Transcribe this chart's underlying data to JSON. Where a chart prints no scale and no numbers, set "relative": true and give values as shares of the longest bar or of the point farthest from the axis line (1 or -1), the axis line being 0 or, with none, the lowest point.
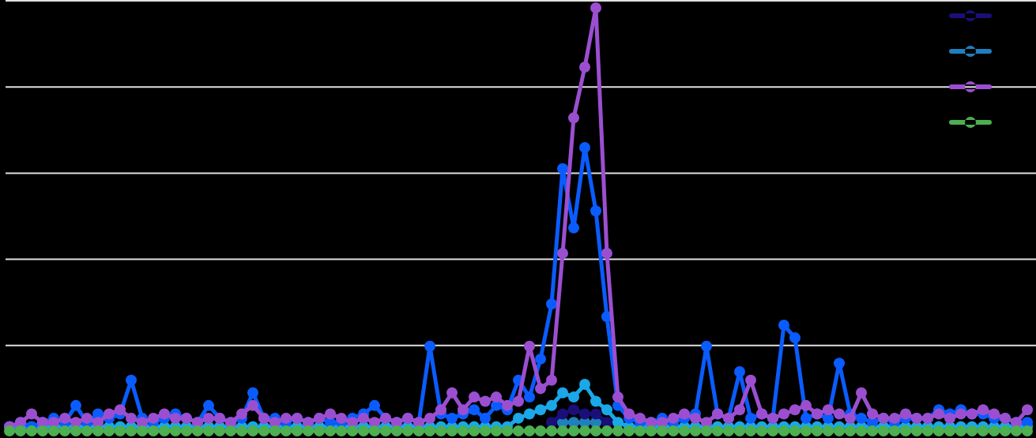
{
  "chart_data": {
    "type": "line",
    "relative": true,
    "grid": "y",
    "marker": "circle",
    "line_style": "solid",
    "categories": [
      null,
      null,
      null,
      null,
      null,
      null,
      null,
      null,
      null,
      null,
      null,
      null,
      null,
      null,
      null,
      null,
      null,
      null,
      null,
      null,
      null,
      null,
      null,
      null,
      null,
      null,
      null,
      null,
      null,
      null,
      null,
      null,
      null,
      null,
      null,
      null,
      null,
      null,
      null,
      null,
      null,
      null,
      null,
      null,
      null,
      null,
      null,
      null,
      null,
      null,
      null,
      null,
      null,
      null,
      null,
      null,
      null,
      null,
      null,
      null,
      null,
      null,
      null,
      null,
      null,
      null,
      null,
      null,
      null,
      null,
      null,
      null,
      null,
      null,
      null,
      null,
      null,
      null,
      null,
      null,
      null,
      null,
      null,
      null,
      null,
      null,
      null,
      null,
      null,
      null,
      null,
      null,
      null
    ],
    "series": [
      {
        "color": "#1f7fbf",
        "values": [
          null,
          null,
          null,
          null,
          null,
          null,
          null,
          null,
          null,
          null,
          null,
          null,
          null,
          null,
          null,
          null,
          null,
          null,
          null,
          null,
          null,
          null,
          null,
          null,
          null,
          null,
          null,
          null,
          null,
          null,
          null,
          null,
          null,
          null,
          null,
          null,
          null,
          null,
          null,
          null,
          null,
          null,
          null,
          null,
          null,
          null,
          null,
          null,
          null,
          null,
          0.02,
          0.02,
          0.02,
          0.02,
          null,
          null,
          null,
          null,
          null,
          null,
          null,
          null,
          null,
          null,
          null,
          null,
          null,
          null,
          null,
          null,
          null,
          null,
          null,
          null,
          null,
          null,
          null,
          null,
          null,
          null,
          null,
          null,
          null,
          null,
          null,
          null,
          null,
          null,
          null,
          null,
          null,
          null,
          null
        ]
      },
      {
        "color": "#1a0f78",
        "values": [
          null,
          null,
          null,
          null,
          null,
          null,
          null,
          null,
          null,
          null,
          null,
          null,
          null,
          null,
          null,
          null,
          null,
          null,
          null,
          null,
          null,
          null,
          null,
          null,
          null,
          null,
          null,
          null,
          null,
          null,
          null,
          null,
          null,
          null,
          null,
          null,
          null,
          null,
          null,
          null,
          null,
          null,
          null,
          null,
          null,
          null,
          null,
          null,
          null,
          0.02,
          0.04,
          0.05,
          0.04,
          0.04,
          0.02,
          null,
          null,
          null,
          null,
          null,
          null,
          null,
          null,
          null,
          null,
          null,
          null,
          null,
          null,
          null,
          null,
          null,
          null,
          null,
          null,
          null,
          null,
          null,
          null,
          null,
          null,
          null,
          null,
          null,
          null,
          null,
          null,
          null,
          null,
          null,
          null,
          null,
          null
        ]
      },
      {
        "color": "#1aa8e8",
        "values": [
          0.01,
          0.01,
          0.01,
          0.01,
          0.01,
          0.01,
          0.01,
          0.01,
          0.01,
          0.01,
          0.01,
          0.01,
          0.01,
          0.01,
          0.01,
          0.01,
          0.01,
          0.01,
          0.01,
          0.01,
          0.01,
          0.01,
          0.01,
          0.01,
          0.01,
          0.01,
          0.01,
          0.01,
          0.01,
          0.01,
          0.01,
          0.01,
          0.01,
          0.01,
          0.01,
          0.01,
          0.01,
          0.01,
          0.01,
          0.01,
          0.01,
          0.01,
          0.01,
          0.01,
          0.01,
          0.01,
          0.03,
          0.04,
          0.05,
          0.06,
          0.09,
          0.08,
          0.11,
          0.07,
          0.05,
          0.02,
          0.01,
          0.01,
          0.01,
          0.01,
          0.01,
          0.01,
          0.01,
          0.01,
          0.01,
          0.01,
          0.01,
          0.01,
          0.01,
          0.01,
          0.01,
          0.01,
          0.01,
          0.01,
          0.01,
          0.01,
          0.01,
          0.01,
          0.01,
          0.01,
          0.01,
          0.01,
          0.01,
          0.01,
          0.01,
          0.01,
          0.01,
          0.01,
          0.01,
          0.01,
          0.01,
          0.01,
          0.01
        ]
      },
      {
        "color": "#0a5cff",
        "values": [
          0.01,
          0.02,
          0.01,
          0.02,
          0.03,
          0.02,
          0.06,
          0.02,
          0.04,
          0.03,
          0.04,
          0.12,
          0.03,
          0.02,
          0.03,
          0.04,
          0.03,
          0.02,
          0.06,
          0.03,
          0.02,
          0.03,
          0.09,
          0.03,
          0.03,
          0.02,
          0.03,
          0.02,
          0.03,
          0.02,
          0.02,
          0.03,
          0.04,
          0.06,
          0.03,
          0.02,
          0.03,
          0.02,
          0.2,
          0.04,
          0.03,
          0.04,
          0.05,
          0.03,
          0.06,
          0.05,
          0.12,
          0.08,
          0.17,
          0.3,
          0.62,
          0.48,
          0.67,
          0.52,
          0.27,
          0.06,
          0.03,
          0.02,
          0.02,
          0.03,
          0.02,
          0.03,
          0.04,
          0.2,
          0.04,
          0.03,
          0.14,
          0.03,
          0.04,
          0.03,
          0.25,
          0.22,
          0.03,
          0.04,
          0.03,
          0.16,
          0.04,
          0.03,
          0.02,
          0.03,
          0.02,
          0.03,
          0.03,
          0.03,
          0.05,
          0.04,
          0.05,
          0.04,
          0.04,
          0.03,
          0.03,
          0.02,
          0.02
        ]
      },
      {
        "color": "#9b4fd0",
        "values": [
          0.01,
          0.02,
          0.04,
          0.02,
          0.02,
          0.03,
          0.02,
          0.03,
          0.02,
          0.04,
          0.05,
          0.03,
          0.02,
          0.03,
          0.04,
          0.03,
          0.03,
          0.02,
          0.03,
          0.03,
          0.02,
          0.04,
          0.06,
          0.03,
          0.02,
          0.03,
          0.03,
          0.02,
          0.03,
          0.04,
          0.03,
          0.02,
          0.03,
          0.02,
          0.03,
          0.02,
          0.03,
          0.02,
          0.03,
          0.05,
          0.09,
          0.05,
          0.08,
          0.07,
          0.08,
          0.06,
          0.07,
          0.2,
          0.1,
          0.12,
          0.42,
          0.74,
          0.86,
          1,
          0.42,
          0.08,
          0.04,
          0.03,
          0.02,
          0.02,
          0.03,
          0.04,
          0.03,
          0.02,
          0.04,
          0.03,
          0.05,
          0.12,
          0.04,
          0.03,
          0.04,
          0.05,
          0.06,
          0.04,
          0.05,
          0.04,
          0.03,
          0.09,
          0.04,
          0.03,
          0.03,
          0.04,
          0.03,
          0.03,
          0.04,
          0.03,
          0.04,
          0.04,
          0.05,
          0.04,
          0.03,
          0.02,
          0.05
        ]
      },
      {
        "color": "#4caf50",
        "values": [
          0,
          0,
          0,
          0,
          0,
          0,
          0,
          0,
          0,
          0,
          0,
          0,
          0,
          0,
          0,
          0,
          0,
          0,
          0,
          0,
          0,
          0,
          0,
          0,
          0,
          0,
          0,
          0,
          0,
          0,
          0,
          0,
          0,
          0,
          0,
          0,
          0,
          0,
          0,
          0,
          0,
          0,
          0,
          0,
          0,
          0,
          0,
          0,
          0,
          0,
          0,
          0,
          0,
          0,
          0,
          0,
          0,
          0,
          0,
          0,
          0,
          0,
          0,
          0,
          0,
          0,
          0,
          0,
          0,
          0,
          0,
          0,
          0,
          0,
          0,
          0,
          0,
          0,
          0,
          0,
          0,
          0,
          0,
          0,
          0,
          0,
          0,
          0,
          0,
          0,
          0,
          0,
          0
        ]
      }
    ]
  }
}
